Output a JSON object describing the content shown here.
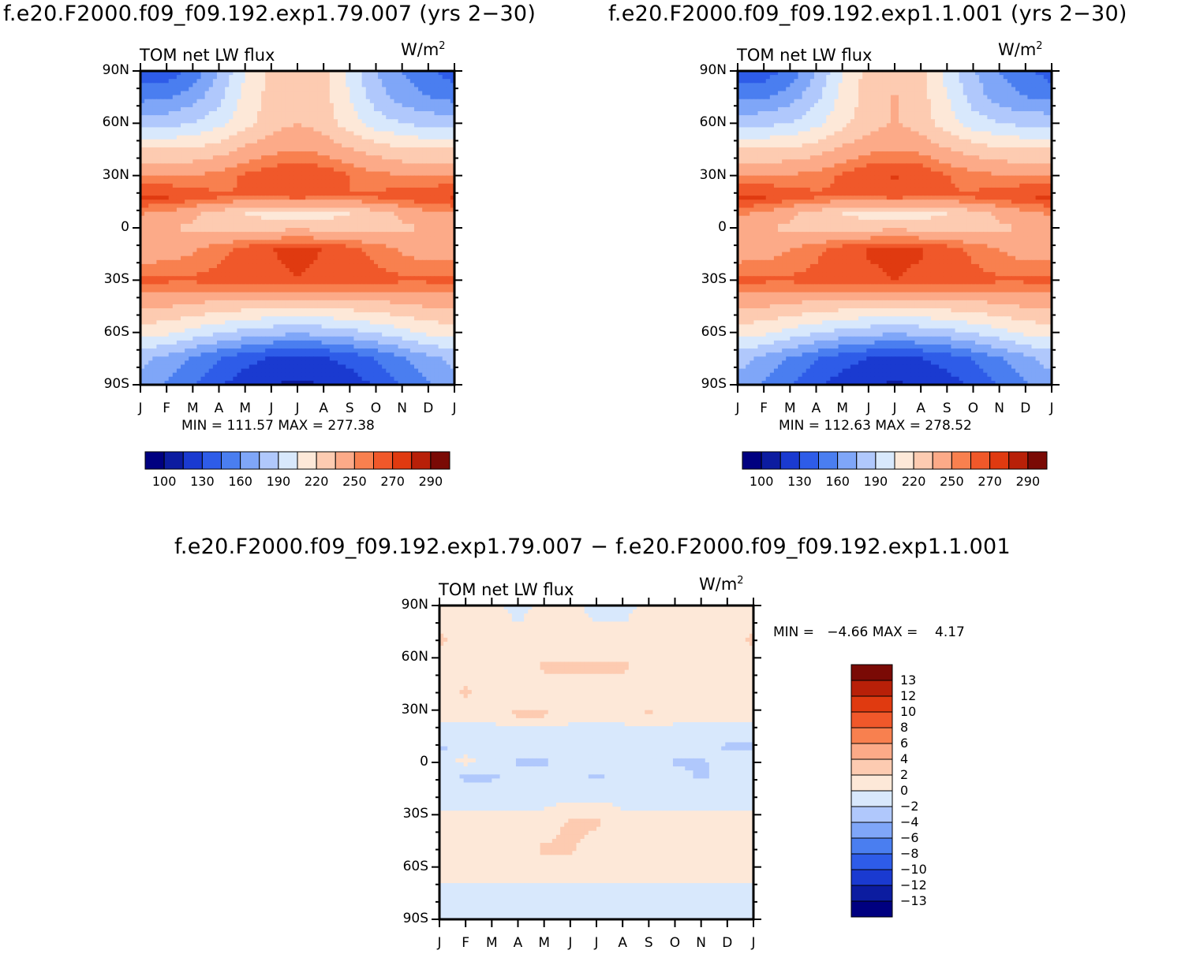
{
  "panels": [
    {
      "id": "left",
      "header": "f.e20.F2000.f09_f09.192.exp1.79.007 (yrs 2−30)",
      "title": "TOM net LW flux",
      "units_base": "W/m",
      "units_exp": "2",
      "min_label": "MIN =",
      "min_value": "111.57",
      "max_label": "MAX =",
      "max_value": "277.38"
    },
    {
      "id": "right",
      "header": "f.e20.F2000.f09_f09.192.exp1.1.001 (yrs 2−30)",
      "title": "TOM net LW flux",
      "units_base": "W/m",
      "units_exp": "2",
      "min_label": "MIN =",
      "min_value": "112.63",
      "max_label": "MAX =",
      "max_value": "278.52"
    },
    {
      "id": "diff",
      "header": "f.e20.F2000.f09_f09.192.exp1.79.007 − f.e20.F2000.f09_f09.192.exp1.1.001",
      "title": "TOM net LW flux",
      "units_base": "W/m",
      "units_exp": "2",
      "min_label": "MIN =",
      "min_value": "−4.66",
      "max_label": "MAX =",
      "max_value": "4.17"
    }
  ],
  "chart_data": [
    {
      "type": "heatmap",
      "title": "TOM net LW flux",
      "xlabel": "",
      "ylabel": "",
      "x_ticks": [
        "J",
        "F",
        "M",
        "A",
        "M",
        "J",
        "J",
        "A",
        "S",
        "O",
        "N",
        "D",
        "J"
      ],
      "y_ticks": [
        "90N",
        "60N",
        "30N",
        "0",
        "30S",
        "60S",
        "90S"
      ],
      "y_values": [
        90,
        60,
        30,
        0,
        -30,
        -60,
        -90
      ],
      "min": 111.57,
      "max": 277.38,
      "colorbar_labels": [
        "100",
        "130",
        "160",
        "190",
        "220",
        "250",
        "270",
        "290"
      ],
      "colorbar_levels": [
        100,
        115,
        130,
        145,
        160,
        175,
        190,
        205,
        220,
        235,
        250,
        260,
        270,
        280,
        290
      ],
      "colorbar_colors": [
        "#000080",
        "#0c1ca0",
        "#1a3ad0",
        "#2e5ce8",
        "#4a7ef0",
        "#7fa6f8",
        "#b0c8fc",
        "#d8e8fc",
        "#fde8d8",
        "#fdcbb1",
        "#fcaa88",
        "#f8804f",
        "#f0582a",
        "#e03a10",
        "#b82008",
        "#7a0a05"
      ],
      "series": [
        {
          "lat": 90,
          "values": [
            135,
            135,
            150,
            175,
            205,
            225,
            232,
            225,
            200,
            175,
            160,
            150,
            135
          ]
        },
        {
          "lat": 75,
          "values": [
            155,
            158,
            168,
            185,
            210,
            225,
            235,
            225,
            205,
            182,
            168,
            160,
            155
          ]
        },
        {
          "lat": 60,
          "values": [
            185,
            185,
            190,
            200,
            215,
            228,
            235,
            228,
            212,
            198,
            190,
            185,
            185
          ]
        },
        {
          "lat": 45,
          "values": [
            220,
            220,
            222,
            228,
            238,
            246,
            250,
            246,
            236,
            228,
            222,
            220,
            220
          ]
        },
        {
          "lat": 30,
          "values": [
            250,
            250,
            250,
            254,
            262,
            268,
            270,
            268,
            260,
            254,
            250,
            250,
            250
          ]
        },
        {
          "lat": 18,
          "values": [
            272,
            272,
            266,
            262,
            260,
            262,
            264,
            262,
            260,
            262,
            266,
            270,
            272
          ]
        },
        {
          "lat": 8,
          "values": [
            250,
            248,
            238,
            228,
            220,
            214,
            212,
            214,
            220,
            228,
            238,
            246,
            250
          ]
        },
        {
          "lat": 0,
          "values": [
            238,
            236,
            232,
            228,
            228,
            230,
            232,
            230,
            228,
            228,
            232,
            236,
            238
          ]
        },
        {
          "lat": -12,
          "values": [
            240,
            242,
            248,
            256,
            264,
            270,
            272,
            270,
            264,
            256,
            248,
            242,
            240
          ]
        },
        {
          "lat": -30,
          "values": [
            262,
            262,
            262,
            264,
            266,
            268,
            270,
            268,
            266,
            264,
            262,
            262,
            264
          ]
        },
        {
          "lat": -45,
          "values": [
            238,
            236,
            232,
            228,
            226,
            224,
            224,
            224,
            226,
            228,
            232,
            236,
            238
          ]
        },
        {
          "lat": -60,
          "values": [
            212,
            208,
            200,
            192,
            185,
            180,
            178,
            180,
            185,
            192,
            200,
            208,
            212
          ]
        },
        {
          "lat": -75,
          "values": [
            180,
            170,
            158,
            145,
            135,
            128,
            125,
            128,
            135,
            145,
            158,
            170,
            180
          ]
        },
        {
          "lat": -90,
          "values": [
            168,
            158,
            145,
            132,
            122,
            115,
            112,
            115,
            122,
            132,
            145,
            158,
            168
          ]
        }
      ]
    },
    {
      "type": "heatmap",
      "title": "TOM net LW flux",
      "xlabel": "",
      "ylabel": "",
      "x_ticks": [
        "J",
        "F",
        "M",
        "A",
        "M",
        "J",
        "J",
        "A",
        "S",
        "O",
        "N",
        "D",
        "J"
      ],
      "y_ticks": [
        "90N",
        "60N",
        "30N",
        "0",
        "30S",
        "60S",
        "90S"
      ],
      "y_values": [
        90,
        60,
        30,
        0,
        -30,
        -60,
        -90
      ],
      "min": 112.63,
      "max": 278.52,
      "colorbar_labels": [
        "100",
        "130",
        "160",
        "190",
        "220",
        "250",
        "270",
        "290"
      ],
      "colorbar_levels": [
        100,
        115,
        130,
        145,
        160,
        175,
        190,
        205,
        220,
        235,
        250,
        260,
        270,
        280,
        290
      ],
      "colorbar_colors": [
        "#000080",
        "#0c1ca0",
        "#1a3ad0",
        "#2e5ce8",
        "#4a7ef0",
        "#7fa6f8",
        "#b0c8fc",
        "#d8e8fc",
        "#fde8d8",
        "#fdcbb1",
        "#fcaa88",
        "#f8804f",
        "#f0582a",
        "#e03a10",
        "#b82008",
        "#7a0a05"
      ],
      "series": [
        {
          "lat": 90,
          "values": [
            136,
            136,
            150,
            176,
            205,
            226,
            233,
            226,
            200,
            176,
            160,
            150,
            136
          ]
        },
        {
          "lat": 75,
          "values": [
            156,
            158,
            168,
            186,
            210,
            226,
            236,
            226,
            206,
            183,
            168,
            160,
            156
          ]
        },
        {
          "lat": 60,
          "values": [
            186,
            186,
            190,
            200,
            216,
            228,
            236,
            228,
            212,
            198,
            190,
            186,
            186
          ]
        },
        {
          "lat": 45,
          "values": [
            220,
            220,
            222,
            228,
            238,
            246,
            250,
            246,
            236,
            228,
            222,
            220,
            220
          ]
        },
        {
          "lat": 30,
          "values": [
            251,
            251,
            251,
            255,
            262,
            269,
            271,
            269,
            261,
            255,
            251,
            251,
            251
          ]
        },
        {
          "lat": 18,
          "values": [
            273,
            272,
            266,
            262,
            260,
            262,
            264,
            262,
            260,
            262,
            266,
            271,
            273
          ]
        },
        {
          "lat": 8,
          "values": [
            251,
            248,
            238,
            228,
            220,
            214,
            212,
            214,
            220,
            228,
            238,
            246,
            251
          ]
        },
        {
          "lat": 0,
          "values": [
            238,
            236,
            232,
            228,
            228,
            230,
            232,
            230,
            228,
            228,
            232,
            236,
            238
          ]
        },
        {
          "lat": -12,
          "values": [
            241,
            243,
            249,
            257,
            265,
            271,
            273,
            271,
            265,
            257,
            249,
            243,
            241
          ]
        },
        {
          "lat": -30,
          "values": [
            262,
            262,
            262,
            264,
            266,
            268,
            270,
            268,
            266,
            264,
            262,
            262,
            264
          ]
        },
        {
          "lat": -45,
          "values": [
            238,
            236,
            232,
            228,
            226,
            224,
            224,
            224,
            226,
            228,
            232,
            236,
            238
          ]
        },
        {
          "lat": -60,
          "values": [
            212,
            208,
            200,
            192,
            185,
            180,
            178,
            180,
            185,
            192,
            200,
            208,
            212
          ]
        },
        {
          "lat": -75,
          "values": [
            181,
            171,
            159,
            146,
            136,
            129,
            126,
            129,
            136,
            146,
            159,
            171,
            181
          ]
        },
        {
          "lat": -90,
          "values": [
            169,
            159,
            146,
            133,
            123,
            116,
            113,
            116,
            123,
            133,
            146,
            159,
            169
          ]
        }
      ]
    },
    {
      "type": "heatmap",
      "title": "TOM net LW flux",
      "xlabel": "",
      "ylabel": "",
      "x_ticks": [
        "J",
        "F",
        "M",
        "A",
        "M",
        "J",
        "J",
        "A",
        "S",
        "O",
        "N",
        "D",
        "J"
      ],
      "y_ticks": [
        "90N",
        "60N",
        "30N",
        "0",
        "30S",
        "60S",
        "90S"
      ],
      "y_values": [
        90,
        60,
        30,
        0,
        -30,
        -60,
        -90
      ],
      "min": -4.66,
      "max": 4.17,
      "colorbar_labels": [
        "13",
        "12",
        "10",
        "8",
        "6",
        "4",
        "2",
        "0",
        "−2",
        "−4",
        "−6",
        "−8",
        "−10",
        "−12",
        "−13"
      ],
      "colorbar_levels": [
        -13,
        -12,
        -10,
        -8,
        -6,
        -4,
        -2,
        0,
        2,
        4,
        6,
        8,
        10,
        12,
        13
      ],
      "colorbar_colors": [
        "#000080",
        "#0c1ca0",
        "#1a3ad0",
        "#2e5ce8",
        "#4a7ef0",
        "#7fa6f8",
        "#b0c8fc",
        "#d8e8fc",
        "#fde8d8",
        "#fdcbb1",
        "#fcaa88",
        "#f8804f",
        "#f0582a",
        "#e03a10",
        "#b82008",
        "#7a0a05"
      ],
      "series": [
        {
          "lat": 90,
          "values": [
            0.5,
            0.5,
            0.5,
            -0.5,
            0.5,
            0.5,
            -0.5,
            -0.5,
            0.5,
            0.5,
            0.5,
            0.5,
            0.5
          ]
        },
        {
          "lat": 70,
          "values": [
            2.5,
            0.5,
            0.5,
            0.5,
            0.5,
            0.5,
            0.5,
            0.5,
            0.5,
            0.5,
            0.5,
            0.5,
            2.5
          ]
        },
        {
          "lat": 55,
          "values": [
            0.5,
            0.5,
            0.5,
            0.5,
            2.5,
            2.5,
            2.5,
            2.5,
            0.5,
            0.5,
            0.5,
            0.5,
            0.5
          ]
        },
        {
          "lat": 40,
          "values": [
            0.5,
            2.5,
            0.5,
            0.5,
            0.5,
            0.5,
            0.5,
            0.5,
            0.5,
            0.5,
            0.5,
            0.5,
            0.5
          ]
        },
        {
          "lat": 28,
          "values": [
            0.5,
            0.5,
            0.5,
            2.5,
            2.5,
            0.5,
            0.5,
            0.5,
            2.5,
            0.5,
            0.5,
            0.5,
            0.5
          ]
        },
        {
          "lat": 18,
          "values": [
            -0.5,
            -0.5,
            -0.5,
            -0.5,
            -0.5,
            -0.5,
            -0.5,
            -0.5,
            -0.5,
            -0.5,
            -0.5,
            -0.5,
            -0.5
          ]
        },
        {
          "lat": 8,
          "values": [
            -2.5,
            -0.5,
            -0.5,
            -0.5,
            -0.5,
            -0.5,
            -0.5,
            -0.5,
            -0.5,
            -0.5,
            -0.5,
            -2.5,
            -2.5
          ]
        },
        {
          "lat": 0,
          "values": [
            -0.5,
            0.5,
            -0.5,
            -2.5,
            -2.5,
            -0.5,
            -0.5,
            -0.5,
            -0.5,
            -2.5,
            -2.5,
            -0.5,
            -0.5
          ]
        },
        {
          "lat": -8,
          "values": [
            -0.5,
            -2.5,
            -2.5,
            -0.5,
            -0.5,
            -0.5,
            -2.5,
            -0.5,
            -0.5,
            -0.5,
            -2.5,
            -0.5,
            -0.5
          ]
        },
        {
          "lat": -20,
          "values": [
            -0.5,
            -0.5,
            -0.5,
            -0.5,
            -0.5,
            -0.5,
            -0.5,
            -0.5,
            -0.5,
            -0.5,
            -0.5,
            -0.5,
            -0.5
          ]
        },
        {
          "lat": -35,
          "values": [
            0.5,
            0.5,
            0.5,
            0.5,
            0.5,
            2.5,
            2.5,
            0.5,
            0.5,
            0.5,
            0.5,
            0.5,
            0.5
          ]
        },
        {
          "lat": -50,
          "values": [
            0.5,
            0.5,
            0.5,
            0.5,
            2.5,
            2.5,
            0.5,
            0.5,
            0.5,
            0.5,
            0.5,
            0.5,
            0.5
          ]
        },
        {
          "lat": -62,
          "values": [
            0.5,
            0.5,
            0.5,
            0.5,
            0.5,
            0.5,
            0.5,
            0.5,
            0.5,
            0.5,
            0.5,
            0.5,
            0.5
          ]
        },
        {
          "lat": -75,
          "values": [
            -0.5,
            -0.5,
            -0.5,
            -0.5,
            -0.5,
            -0.5,
            -0.5,
            -0.5,
            -0.5,
            -0.5,
            -0.5,
            -0.5,
            -0.5
          ]
        },
        {
          "lat": -90,
          "values": [
            -0.5,
            -0.5,
            -0.5,
            -0.5,
            -0.5,
            -0.5,
            -0.5,
            -0.5,
            -0.5,
            -0.5,
            -0.5,
            -0.5,
            -0.5
          ]
        }
      ]
    }
  ]
}
